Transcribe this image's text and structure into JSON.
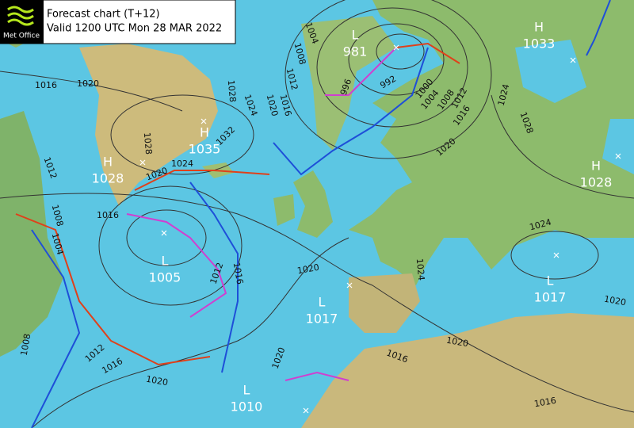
{
  "header": {
    "logo": "Met Office",
    "title": "Forecast chart (T+12)",
    "valid": "Valid 1200 UTC Mon 28 MAR 2022"
  },
  "centers": [
    {
      "kind": "L",
      "value": 981
    },
    {
      "kind": "H",
      "value": 1033
    },
    {
      "kind": "H",
      "value": 1035
    },
    {
      "kind": "H",
      "value": 1028
    },
    {
      "kind": "L",
      "value": 1005
    },
    {
      "kind": "L",
      "value": 1017
    },
    {
      "kind": "H",
      "value": 1028
    },
    {
      "kind": "L",
      "value": 1017
    },
    {
      "kind": "L",
      "value": 1010
    }
  ],
  "isobar_labels": [
    1004,
    1008,
    1012,
    1016,
    1020,
    996,
    992,
    1000,
    1004,
    1008,
    1012,
    1016,
    1020,
    1024,
    1028,
    1028,
    1024,
    1032,
    1028,
    1024,
    1020,
    1016,
    1020,
    1016,
    1012,
    1008,
    1004,
    1012,
    1016,
    1020,
    1024,
    1024,
    1020,
    1020,
    1016,
    1020,
    1020,
    1016,
    1012,
    1008,
    1016
  ]
}
